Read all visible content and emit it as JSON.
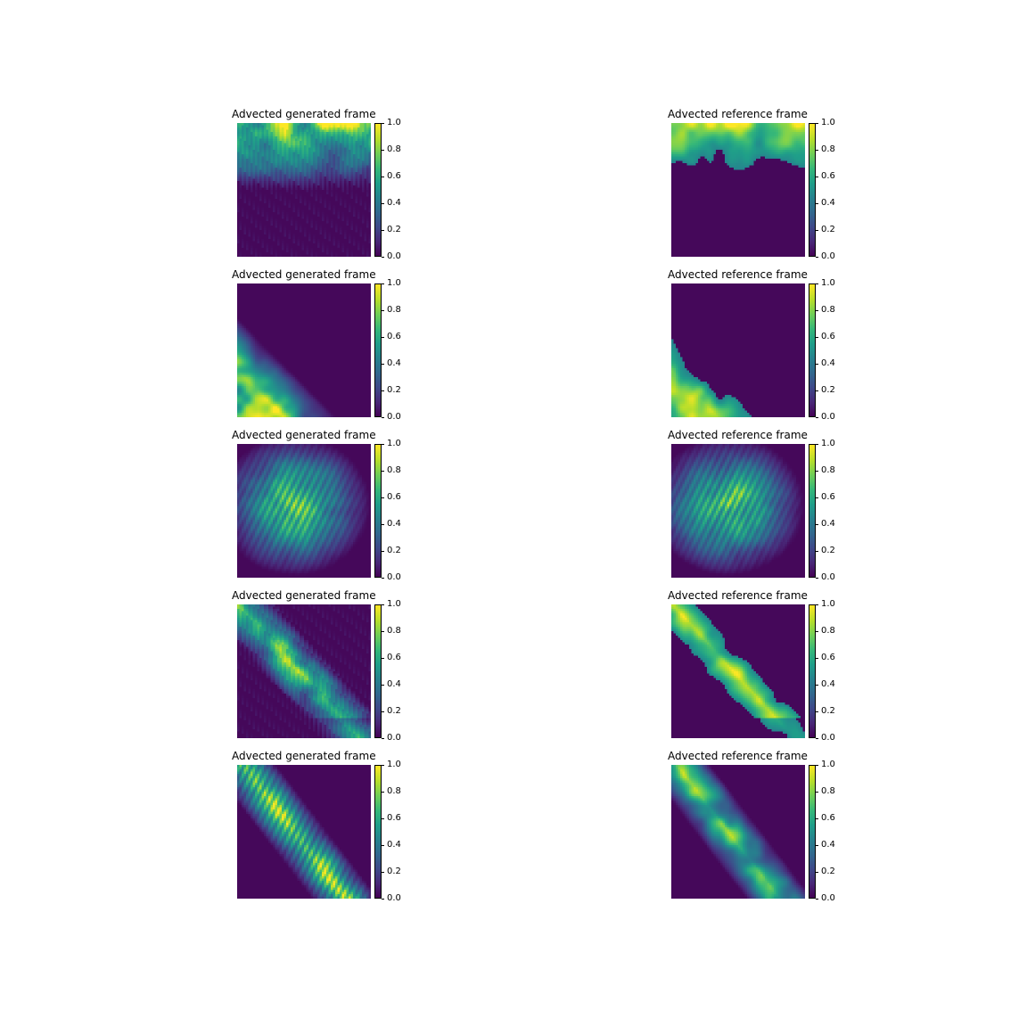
{
  "chart_data": {
    "type": "heatmap",
    "colormap": "viridis",
    "grid": false,
    "axes_visible": false,
    "layout": {
      "rows": 5,
      "columns": 2
    },
    "colorbar": {
      "range": [
        0.0,
        1.0
      ],
      "ticks": [
        "0.0",
        "0.2",
        "0.4",
        "0.6",
        "0.8",
        "1.0"
      ]
    },
    "panels": [
      {
        "title": "Advected generated frame",
        "seed": 11,
        "pattern": "top_band",
        "texture": "blocky"
      },
      {
        "title": "Advected reference frame",
        "seed": 12,
        "pattern": "top_band",
        "texture": "sharp"
      },
      {
        "title": "Advected generated frame",
        "seed": 21,
        "pattern": "bottom_left_corner",
        "texture": "smooth"
      },
      {
        "title": "Advected reference frame",
        "seed": 22,
        "pattern": "bottom_left_corner",
        "texture": "sharp"
      },
      {
        "title": "Advected generated frame",
        "seed": 31,
        "pattern": "central_blob",
        "texture": "streaky"
      },
      {
        "title": "Advected reference frame",
        "seed": 32,
        "pattern": "central_blob",
        "texture": "streaky"
      },
      {
        "title": "Advected generated frame",
        "seed": 41,
        "pattern": "diagonal_cluster",
        "texture": "blocky"
      },
      {
        "title": "Advected reference frame",
        "seed": 42,
        "pattern": "diagonal_cluster",
        "texture": "sharp"
      },
      {
        "title": "Advected generated frame",
        "seed": 51,
        "pattern": "diagonal_band",
        "texture": "streaky"
      },
      {
        "title": "Advected reference frame",
        "seed": 52,
        "pattern": "diagonal_band",
        "texture": "smooth"
      }
    ]
  }
}
